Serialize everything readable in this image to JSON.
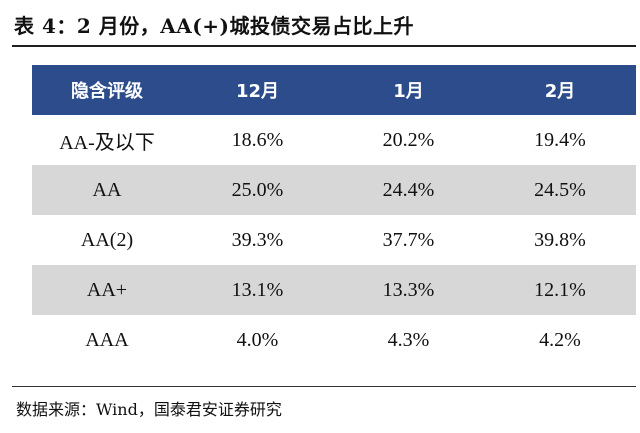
{
  "title": "表 4：2 月份，AA(+)城投债交易占比上升",
  "table": {
    "headers": [
      "隐含评级",
      "12月",
      "1月",
      "2月"
    ],
    "rows": [
      [
        "AA-及以下",
        "18.6%",
        "20.2%",
        "19.4%"
      ],
      [
        "AA",
        "25.0%",
        "24.4%",
        "24.5%"
      ],
      [
        "AA(2)",
        "39.3%",
        "37.7%",
        "39.8%"
      ],
      [
        "AA+",
        "13.1%",
        "13.3%",
        "12.1%"
      ],
      [
        "AAA",
        "4.0%",
        "4.3%",
        "4.2%"
      ]
    ]
  },
  "source": "数据来源：Wind，国泰君安证券研究",
  "colors": {
    "header_bg": "#2c4c8c",
    "shaded_row_bg": "#d7d7d7"
  }
}
